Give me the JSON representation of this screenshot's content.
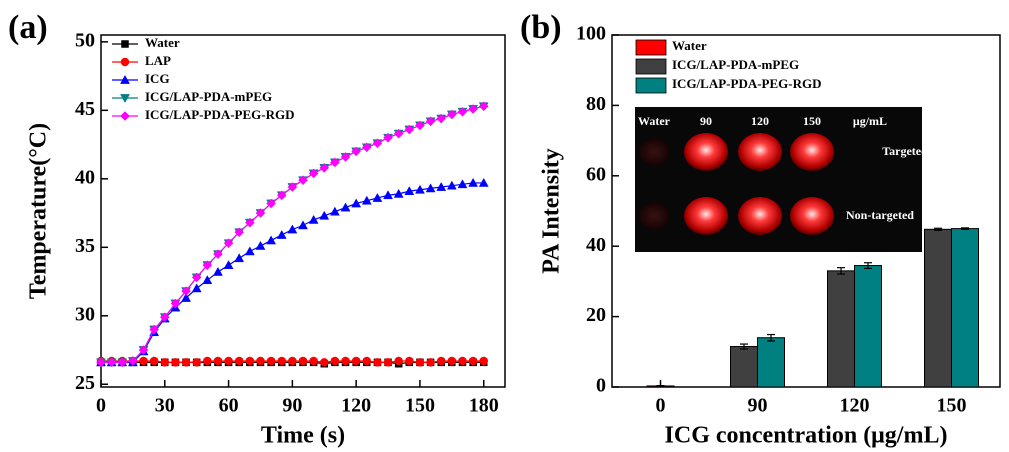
{
  "chart_data": [
    {
      "type": "line",
      "panel_label": "(a)",
      "x_label": "Time (s)",
      "y_label": "Temperature(°C)",
      "x": [
        0,
        5,
        10,
        15,
        20,
        25,
        30,
        35,
        40,
        45,
        50,
        55,
        60,
        65,
        70,
        75,
        80,
        85,
        90,
        95,
        100,
        105,
        110,
        115,
        120,
        125,
        130,
        135,
        140,
        145,
        150,
        155,
        160,
        165,
        170,
        175,
        180
      ],
      "xlim": [
        0,
        190
      ],
      "xticks": [
        0,
        30,
        60,
        90,
        120,
        150,
        180
      ],
      "ylim": [
        24.8,
        50.5
      ],
      "yticks": [
        25,
        30,
        35,
        40,
        45,
        50
      ],
      "legend": "upper-left",
      "series": [
        {
          "name": "Water",
          "color": "#000000",
          "marker": "square",
          "values": [
            26.6,
            26.6,
            26.6,
            26.6,
            26.6,
            26.6,
            26.6,
            26.6,
            26.6,
            26.6,
            26.6,
            26.6,
            26.6,
            26.6,
            26.6,
            26.6,
            26.6,
            26.6,
            26.6,
            26.6,
            26.6,
            26.5,
            26.6,
            26.6,
            26.6,
            26.6,
            26.6,
            26.6,
            26.5,
            26.6,
            26.6,
            26.6,
            26.6,
            26.6,
            26.6,
            26.6,
            26.6
          ]
        },
        {
          "name": "LAP",
          "color": "#ff0000",
          "marker": "circle",
          "values": [
            26.7,
            26.7,
            26.7,
            26.7,
            26.7,
            26.7,
            26.6,
            26.6,
            26.6,
            26.6,
            26.7,
            26.7,
            26.7,
            26.7,
            26.7,
            26.7,
            26.7,
            26.7,
            26.7,
            26.7,
            26.7,
            26.6,
            26.7,
            26.7,
            26.7,
            26.7,
            26.6,
            26.6,
            26.7,
            26.7,
            26.6,
            26.6,
            26.7,
            26.7,
            26.7,
            26.7,
            26.7
          ]
        },
        {
          "name": "ICG",
          "color": "#0000ff",
          "marker": "triangle-up",
          "values": [
            26.6,
            26.6,
            26.6,
            26.6,
            27.4,
            28.8,
            29.8,
            30.6,
            31.3,
            32.0,
            32.6,
            33.2,
            33.7,
            34.2,
            34.7,
            35.1,
            35.5,
            35.9,
            36.3,
            36.6,
            37.0,
            37.3,
            37.6,
            37.9,
            38.2,
            38.4,
            38.6,
            38.8,
            38.9,
            39.1,
            39.2,
            39.3,
            39.4,
            39.5,
            39.6,
            39.7,
            39.7
          ]
        },
        {
          "name": "ICG/LAP-PDA-mPEG",
          "color": "#008080",
          "marker": "triangle-down",
          "values": [
            26.6,
            26.6,
            26.6,
            26.7,
            27.5,
            29.0,
            29.9,
            30.9,
            31.8,
            32.8,
            33.7,
            34.5,
            35.3,
            36.1,
            36.8,
            37.5,
            38.2,
            38.8,
            39.4,
            39.9,
            40.4,
            40.8,
            41.2,
            41.6,
            42.0,
            42.3,
            42.6,
            43.0,
            43.3,
            43.6,
            43.9,
            44.2,
            44.4,
            44.7,
            44.9,
            45.1,
            45.3
          ]
        },
        {
          "name": "ICG/LAP-PDA-PEG-RGD",
          "color": "#ff00ff",
          "marker": "diamond",
          "values": [
            26.6,
            26.6,
            26.6,
            26.7,
            27.5,
            29.0,
            29.9,
            30.9,
            31.8,
            32.8,
            33.7,
            34.5,
            35.3,
            36.1,
            36.8,
            37.5,
            38.2,
            38.8,
            39.4,
            39.9,
            40.4,
            40.8,
            41.2,
            41.6,
            42.0,
            42.3,
            42.6,
            43.0,
            43.3,
            43.6,
            43.9,
            44.2,
            44.4,
            44.7,
            44.9,
            45.1,
            45.3
          ]
        }
      ]
    },
    {
      "type": "bar",
      "panel_label": "(b)",
      "x_label": "ICG concentration (μg/mL)",
      "y_label": "PA Intensity",
      "categories": [
        "0",
        "90",
        "120",
        "150"
      ],
      "ylim": [
        0,
        100
      ],
      "yticks": [
        0,
        20,
        40,
        60,
        80,
        100
      ],
      "legend": "upper-left",
      "series": [
        {
          "name": "Water",
          "color": "#ff0000",
          "values": [
            0.3,
            null,
            null,
            null
          ],
          "errors": [
            0.1,
            null,
            null,
            null
          ]
        },
        {
          "name": "ICG/LAP-PDA-mPEG",
          "color": "#404040",
          "values": [
            null,
            11.5,
            33.0,
            44.8
          ],
          "errors": [
            null,
            0.7,
            0.9,
            0.3
          ]
        },
        {
          "name": "ICG/LAP-PDA-PEG-RGD",
          "color": "#008080",
          "values": [
            null,
            14.0,
            34.5,
            45.0
          ],
          "errors": [
            null,
            0.9,
            0.8,
            0.2
          ]
        }
      ],
      "inset": {
        "column_labels": [
          "Water",
          "90",
          "120",
          "150"
        ],
        "unit": "μg/mL",
        "row_labels": [
          "Targeted",
          "Non-targeted"
        ]
      }
    }
  ]
}
